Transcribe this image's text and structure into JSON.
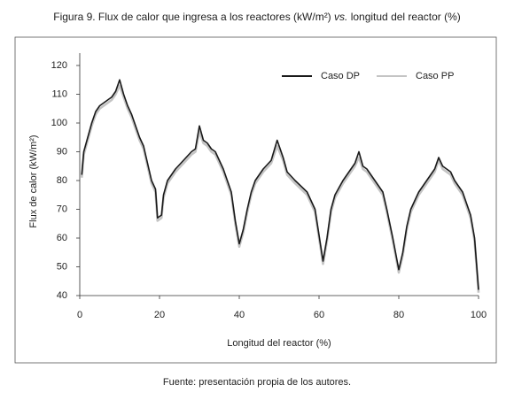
{
  "chart_data": {
    "type": "line",
    "title": [
      "Figura 9. Flux de calor que ingresa a los reactores (kW/m²) ",
      "vs.",
      " longitud del reactor (%)"
    ],
    "x_label": "Longitud del reactor (%)",
    "y_label": "Flux de calor (kW/m²)",
    "source": "Fuente: presentación propia de los autores.",
    "x": [
      0.5,
      1,
      2,
      3,
      4,
      5,
      6,
      7,
      8,
      9,
      10,
      11,
      12,
      13,
      14,
      15,
      16,
      17,
      18,
      19,
      19.5,
      20.5,
      21,
      22,
      24,
      26,
      28,
      29,
      30,
      31,
      32,
      33,
      34,
      35,
      36,
      37,
      38,
      39,
      40,
      41,
      42,
      43,
      44,
      46,
      48,
      49.5,
      51,
      52,
      54,
      57,
      59,
      60,
      61,
      62,
      63,
      64,
      66,
      68,
      69,
      70,
      71,
      72,
      74,
      76,
      77,
      78.5,
      80,
      81,
      82,
      83,
      85,
      87,
      89,
      90,
      91,
      93,
      94,
      96,
      97,
      98,
      99,
      100
    ],
    "series": [
      {
        "name": "Caso DP",
        "color": "#1a1a1a",
        "values": [
          82,
          90,
          95,
          100,
          104,
          106,
          107,
          108,
          109,
          111,
          115,
          110,
          106,
          103,
          99,
          95,
          92,
          86,
          80,
          77,
          67,
          68,
          75,
          80,
          84,
          87,
          90,
          91,
          99,
          94,
          93,
          91,
          90,
          87,
          84,
          80,
          76,
          66,
          58,
          63,
          70,
          76,
          80,
          84,
          87,
          94,
          88,
          83,
          80,
          76,
          70,
          61,
          52,
          60,
          70,
          75,
          80,
          84,
          86,
          90,
          85,
          84,
          80,
          76,
          70,
          60,
          49,
          55,
          64,
          70,
          76,
          80,
          84,
          88,
          85,
          83,
          80,
          76,
          72,
          68,
          60,
          42
        ]
      },
      {
        "name": "Caso PP",
        "color": "#c4c4c4",
        "values": [
          81,
          89,
          94,
          99,
          103,
          105,
          106,
          107,
          108,
          110,
          113,
          109,
          105,
          102,
          98,
          94,
          91,
          85,
          79,
          76,
          66,
          67,
          74,
          79,
          83,
          86,
          89,
          90,
          97,
          93,
          92,
          90,
          89,
          86,
          83,
          79,
          75,
          65,
          57,
          62,
          69,
          75,
          79,
          83,
          86,
          92,
          87,
          82,
          79,
          75,
          69,
          60,
          51,
          59,
          69,
          74,
          79,
          83,
          85,
          88,
          84,
          83,
          79,
          75,
          69,
          59,
          48,
          54,
          63,
          69,
          75,
          79,
          83,
          87,
          84,
          82,
          79,
          75,
          71,
          67,
          59,
          41
        ]
      }
    ],
    "xlim": [
      0,
      100
    ],
    "xticks": [
      0,
      20,
      40,
      60,
      80,
      100
    ],
    "ylim": [
      40,
      120
    ],
    "yticks": [
      40,
      50,
      60,
      70,
      80,
      90,
      100,
      110,
      120
    ],
    "grid": false,
    "legend": "upper right"
  }
}
